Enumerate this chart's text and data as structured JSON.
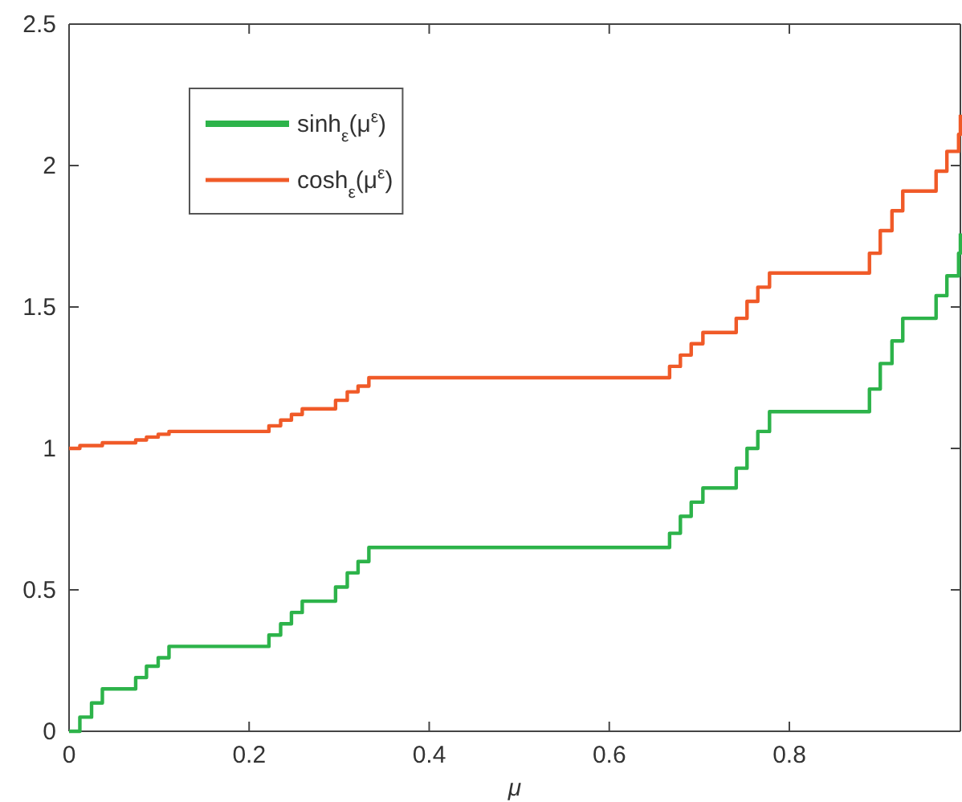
{
  "chart_data": {
    "type": "step",
    "xlabel": "μ",
    "x": [
      0,
      0.012,
      0.025,
      0.037,
      0.074,
      0.086,
      0.099,
      0.111,
      0.222,
      0.235,
      0.247,
      0.259,
      0.296,
      0.309,
      0.321,
      0.333,
      0.667,
      0.679,
      0.691,
      0.704,
      0.741,
      0.753,
      0.765,
      0.778,
      0.889,
      0.901,
      0.914,
      0.926,
      0.963,
      0.975,
      0.988,
      0.99
    ],
    "series": [
      {
        "name": "sinh$_{ε}$(μ$^{ε}$)",
        "color": "#2db34a",
        "values": [
          0,
          0.05,
          0.1,
          0.15,
          0.19,
          0.23,
          0.26,
          0.3,
          0.34,
          0.38,
          0.42,
          0.46,
          0.51,
          0.56,
          0.6,
          0.65,
          0.7,
          0.76,
          0.81,
          0.86,
          0.93,
          1.0,
          1.06,
          1.13,
          1.21,
          1.3,
          1.38,
          1.46,
          1.54,
          1.61,
          1.69,
          1.76
        ]
      },
      {
        "name": "cosh$_{ε}$(μ$^{ε}$)",
        "color": "#f05a28",
        "values": [
          1.0,
          1.01,
          1.01,
          1.02,
          1.03,
          1.04,
          1.05,
          1.06,
          1.08,
          1.1,
          1.12,
          1.14,
          1.17,
          1.2,
          1.22,
          1.25,
          1.29,
          1.33,
          1.37,
          1.41,
          1.46,
          1.52,
          1.57,
          1.62,
          1.69,
          1.77,
          1.84,
          1.91,
          1.98,
          2.05,
          2.11,
          2.18
        ]
      }
    ],
    "xlim": [
      0,
      0.99
    ],
    "xticks": [
      0,
      0.2,
      0.4,
      0.6,
      0.8
    ],
    "ylim": [
      0,
      2.5
    ],
    "yticks": [
      0,
      0.5,
      1,
      1.5,
      2,
      2.5
    ],
    "grid": false,
    "legend": "top left",
    "line_style": "solid",
    "marker": "none"
  }
}
